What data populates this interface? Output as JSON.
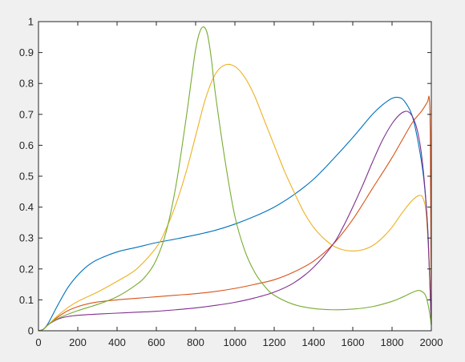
{
  "chart_data": {
    "type": "line",
    "title": "",
    "xlabel": "",
    "ylabel": "",
    "xlim": [
      0,
      2000
    ],
    "ylim": [
      0,
      1
    ],
    "xticks": [
      0,
      200,
      400,
      600,
      800,
      1000,
      1200,
      1400,
      1600,
      1800,
      2000
    ],
    "xtick_labels": [
      "0",
      "200",
      "400",
      "600",
      "800",
      "1000",
      "1200",
      "1400",
      "1600",
      "1800",
      "2000"
    ],
    "yticks": [
      0,
      0.1,
      0.2,
      0.3,
      0.4,
      0.5,
      0.6,
      0.7,
      0.8,
      0.9,
      1
    ],
    "ytick_labels": [
      "0",
      "0.1",
      "0.2",
      "0.3",
      "0.4",
      "0.5",
      "0.6",
      "0.7",
      "0.8",
      "0.9",
      "1"
    ],
    "grid": false,
    "legend": "none",
    "background": "#f0f0f0",
    "axes_background": "#ffffff",
    "series": [
      {
        "color": "#0072bd",
        "x": [
          0,
          25,
          50,
          100,
          150,
          200,
          250,
          300,
          400,
          500,
          600,
          700,
          800,
          900,
          1000,
          1100,
          1200,
          1300,
          1400,
          1500,
          1600,
          1700,
          1750,
          1800,
          1830,
          1860,
          1900,
          1930,
          1960,
          1980,
          1990,
          2000
        ],
        "y": [
          0,
          0.005,
          0.025,
          0.085,
          0.14,
          0.18,
          0.21,
          0.23,
          0.255,
          0.27,
          0.285,
          0.297,
          0.31,
          0.325,
          0.345,
          0.37,
          0.4,
          0.44,
          0.49,
          0.555,
          0.625,
          0.7,
          0.73,
          0.752,
          0.755,
          0.745,
          0.7,
          0.62,
          0.5,
          0.35,
          0.2,
          0.02
        ]
      },
      {
        "color": "#d95319",
        "x": [
          0,
          25,
          50,
          100,
          150,
          200,
          250,
          300,
          400,
          500,
          600,
          700,
          800,
          900,
          1000,
          1100,
          1200,
          1300,
          1400,
          1500,
          1600,
          1700,
          1800,
          1900,
          1950,
          1980,
          1990,
          1995,
          2000
        ],
        "y": [
          0,
          0.005,
          0.02,
          0.045,
          0.065,
          0.078,
          0.087,
          0.093,
          0.1,
          0.105,
          0.11,
          0.115,
          0.12,
          0.127,
          0.137,
          0.15,
          0.165,
          0.19,
          0.225,
          0.28,
          0.36,
          0.46,
          0.56,
          0.67,
          0.71,
          0.74,
          0.75,
          0.6,
          0.02
        ]
      },
      {
        "color": "#edb120",
        "x": [
          0,
          25,
          50,
          100,
          150,
          200,
          300,
          400,
          500,
          600,
          650,
          700,
          750,
          800,
          850,
          900,
          950,
          1000,
          1050,
          1100,
          1150,
          1200,
          1250,
          1300,
          1350,
          1400,
          1450,
          1500,
          1550,
          1600,
          1650,
          1700,
          1750,
          1800,
          1850,
          1900,
          1940,
          1960,
          1975,
          1990,
          2000
        ],
        "y": [
          0,
          0.005,
          0.02,
          0.05,
          0.075,
          0.095,
          0.125,
          0.16,
          0.2,
          0.27,
          0.33,
          0.41,
          0.51,
          0.63,
          0.75,
          0.83,
          0.86,
          0.855,
          0.82,
          0.76,
          0.68,
          0.6,
          0.52,
          0.45,
          0.385,
          0.335,
          0.3,
          0.275,
          0.262,
          0.258,
          0.262,
          0.275,
          0.3,
          0.335,
          0.38,
          0.42,
          0.438,
          0.425,
          0.37,
          0.2,
          0.02
        ]
      },
      {
        "color": "#7e2f8e",
        "x": [
          0,
          25,
          50,
          100,
          150,
          200,
          300,
          400,
          500,
          600,
          700,
          800,
          900,
          1000,
          1100,
          1200,
          1300,
          1400,
          1500,
          1550,
          1600,
          1650,
          1700,
          1750,
          1800,
          1840,
          1870,
          1890,
          1910,
          1930,
          1950,
          1970,
          1985,
          2000
        ],
        "y": [
          0,
          0.005,
          0.02,
          0.038,
          0.046,
          0.05,
          0.054,
          0.057,
          0.06,
          0.063,
          0.068,
          0.074,
          0.082,
          0.092,
          0.106,
          0.125,
          0.155,
          0.205,
          0.28,
          0.335,
          0.4,
          0.47,
          0.545,
          0.615,
          0.67,
          0.7,
          0.71,
          0.705,
          0.685,
          0.645,
          0.57,
          0.44,
          0.28,
          0.02
        ]
      },
      {
        "color": "#77ac30",
        "x": [
          0,
          25,
          50,
          100,
          200,
          300,
          400,
          500,
          550,
          600,
          650,
          700,
          750,
          780,
          800,
          820,
          840,
          860,
          880,
          900,
          950,
          1000,
          1050,
          1100,
          1150,
          1200,
          1300,
          1400,
          1500,
          1600,
          1700,
          1800,
          1850,
          1900,
          1930,
          1950,
          1970,
          1985,
          2000
        ],
        "y": [
          0,
          0.005,
          0.02,
          0.04,
          0.065,
          0.085,
          0.11,
          0.15,
          0.18,
          0.23,
          0.32,
          0.47,
          0.68,
          0.82,
          0.91,
          0.965,
          0.983,
          0.96,
          0.88,
          0.77,
          0.55,
          0.37,
          0.26,
          0.19,
          0.145,
          0.115,
          0.085,
          0.072,
          0.068,
          0.07,
          0.078,
          0.095,
          0.108,
          0.123,
          0.13,
          0.128,
          0.115,
          0.08,
          0.02
        ]
      }
    ]
  }
}
